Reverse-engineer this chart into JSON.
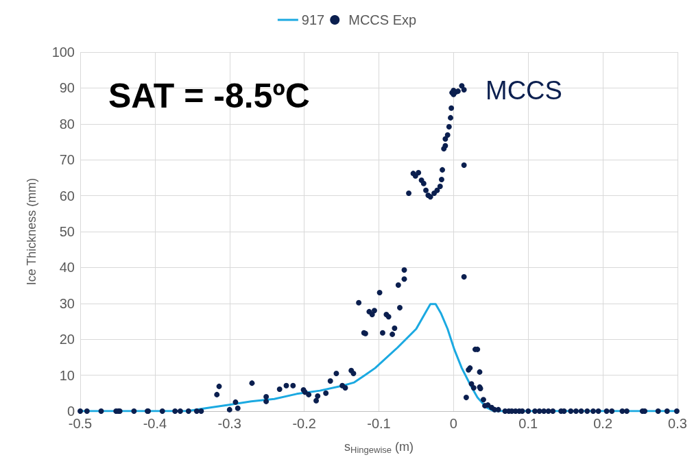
{
  "chart_data": {
    "type": "scatter",
    "xlabel": "s$_{Hingewise}$ (m)",
    "ylabel": "Ice Thickness (mm)",
    "annotations": [
      "SAT = -8.5ºC",
      "MCCS"
    ],
    "xlim": [
      -0.5,
      0.3
    ],
    "xticks": [
      -0.5,
      -0.4,
      -0.3,
      -0.2,
      -0.1,
      0,
      0.1,
      0.2,
      0.3
    ],
    "ylim": [
      0,
      100
    ],
    "yticks": [
      0,
      10,
      20,
      30,
      40,
      50,
      60,
      70,
      80,
      90,
      100
    ],
    "grid": true,
    "legend": "top",
    "series": [
      {
        "name": "917",
        "type": "line",
        "color": "#1ba9e1",
        "marker": "none",
        "line_style": "solid",
        "x": [
          -0.5,
          -0.357,
          -0.332,
          -0.302,
          -0.271,
          -0.24,
          -0.21,
          -0.179,
          -0.148,
          -0.133,
          -0.118,
          -0.105,
          -0.075,
          -0.05,
          -0.038,
          -0.031,
          -0.024,
          -0.017,
          -0.008,
          0.001,
          0.011,
          0.023,
          0.032,
          0.044,
          0.054,
          0.3
        ],
        "values": [
          0,
          0,
          0.8,
          1.7,
          2.7,
          3.4,
          4.8,
          5.7,
          7.1,
          8.0,
          10.1,
          12.0,
          17.7,
          22.9,
          27.3,
          29.8,
          29.8,
          27.3,
          22.9,
          17.2,
          12.0,
          7.1,
          3.8,
          1.0,
          0,
          0
        ]
      },
      {
        "name": "MCCS Exp",
        "color": "#0b1f4f",
        "marker": "circle",
        "x": [
          -0.5,
          -0.491,
          -0.472,
          -0.452,
          -0.449,
          -0.447,
          -0.428,
          -0.41,
          -0.409,
          -0.39,
          -0.373,
          -0.366,
          -0.355,
          -0.344,
          -0.338,
          -0.317,
          -0.314,
          -0.3,
          -0.292,
          -0.289,
          -0.27,
          -0.251,
          -0.251,
          -0.233,
          -0.224,
          -0.215,
          -0.201,
          -0.199,
          -0.194,
          -0.184,
          -0.182,
          -0.171,
          -0.165,
          -0.157,
          -0.149,
          -0.145,
          -0.137,
          -0.134,
          -0.127,
          -0.12,
          -0.118,
          -0.113,
          -0.109,
          -0.106,
          -0.099,
          -0.095,
          -0.09,
          -0.087,
          -0.082,
          -0.079,
          -0.074,
          -0.072,
          -0.066,
          -0.066,
          -0.06,
          -0.054,
          -0.051,
          -0.047,
          -0.043,
          -0.04,
          -0.037,
          -0.034,
          -0.031,
          -0.026,
          -0.022,
          -0.018,
          -0.016,
          -0.015,
          -0.013,
          -0.011,
          -0.011,
          -0.008,
          -0.006,
          -0.004,
          -0.003,
          -0.002,
          0.0,
          0.0,
          0.003,
          0.006,
          0.011,
          0.014,
          0.014,
          0.014,
          0.017,
          0.02,
          0.022,
          0.024,
          0.027,
          0.029,
          0.032,
          0.035,
          0.035,
          0.036,
          0.04,
          0.042,
          0.046,
          0.051,
          0.055,
          0.06,
          0.069,
          0.074,
          0.078,
          0.083,
          0.088,
          0.092,
          0.1,
          0.109,
          0.115,
          0.121,
          0.127,
          0.133,
          0.144,
          0.148,
          0.157,
          0.164,
          0.171,
          0.179,
          0.187,
          0.194,
          0.205,
          0.212,
          0.226,
          0.232,
          0.253,
          0.256,
          0.274,
          0.286,
          0.299
        ],
        "values": [
          0,
          0,
          0,
          0,
          0,
          0,
          0,
          0,
          0,
          0,
          0,
          0,
          0,
          0,
          0,
          4.6,
          6.9,
          0.4,
          2.5,
          0.8,
          7.8,
          2.7,
          4.0,
          6.1,
          7.1,
          7.1,
          5.9,
          5.3,
          4.6,
          2.9,
          4.2,
          5.0,
          8.4,
          10.5,
          7.1,
          6.5,
          11.3,
          10.5,
          30.2,
          21.8,
          21.6,
          27.7,
          26.9,
          28.0,
          33.0,
          21.8,
          26.9,
          26.3,
          21.4,
          23.1,
          35.1,
          28.8,
          36.8,
          39.3,
          60.7,
          66.2,
          65.5,
          66.4,
          64.3,
          63.4,
          61.5,
          60.1,
          59.7,
          60.7,
          61.5,
          62.6,
          64.5,
          67.2,
          73.1,
          73.9,
          75.8,
          76.9,
          79.2,
          81.7,
          84.4,
          88.7,
          89.3,
          88.2,
          88.9,
          89.1,
          90.6,
          89.5,
          68.5,
          37.4,
          3.8,
          11.5,
          12.0,
          7.6,
          6.5,
          17.2,
          17.2,
          10.9,
          6.7,
          6.3,
          3.2,
          1.5,
          1.7,
          1.0,
          0.4,
          0.4,
          0,
          0,
          0,
          0,
          0,
          0,
          0,
          0,
          0,
          0,
          0,
          0,
          0,
          0,
          0,
          0,
          0,
          0,
          0,
          0,
          0,
          0,
          0,
          0,
          0,
          0,
          0,
          0,
          0
        ]
      }
    ]
  }
}
